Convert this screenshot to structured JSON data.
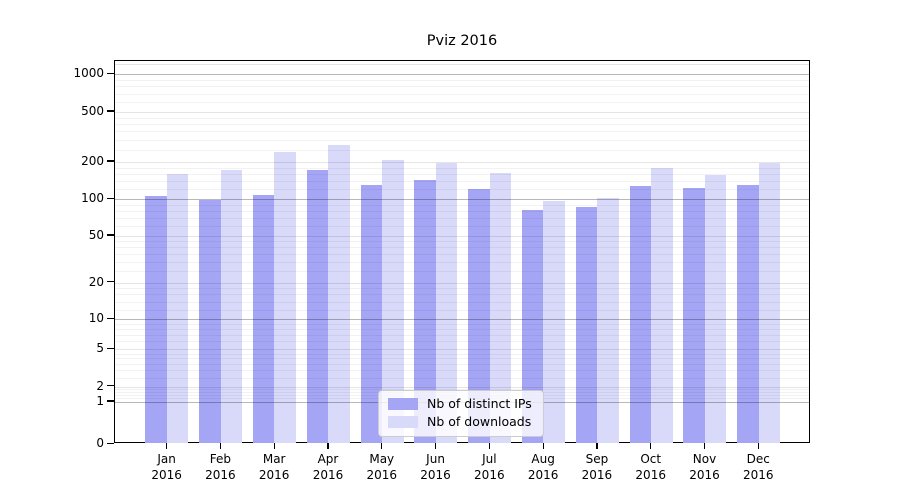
{
  "chart_data": {
    "type": "bar",
    "title": "Pviz 2016",
    "categories": [
      "Jan 2016",
      "Feb 2016",
      "Mar 2016",
      "Apr 2016",
      "May 2016",
      "Jun 2016",
      "Jul 2016",
      "Aug 2016",
      "Sep 2016",
      "Oct 2016",
      "Nov 2016",
      "Dec 2016"
    ],
    "series": [
      {
        "name": "Nb of distinct IPs",
        "color": "#a5a5f6",
        "values": [
          107,
          98,
          109,
          173,
          131,
          142,
          120,
          81,
          86,
          128,
          123,
          131
        ]
      },
      {
        "name": "Nb of downloads",
        "color": "#d9d9f9",
        "values": [
          159,
          173,
          239,
          275,
          207,
          197,
          164,
          97,
          102,
          178,
          158,
          195
        ]
      }
    ],
    "yscale": "symlog",
    "y_ticks": [
      0,
      1,
      2,
      5,
      10,
      20,
      50,
      100,
      200,
      500,
      1000
    ],
    "y_tick_labels": [
      "0",
      "1",
      "2",
      "5",
      "10",
      "20",
      "50",
      "100",
      "200",
      "500",
      "1000"
    ],
    "xlabel": "",
    "ylabel": "",
    "ylim": [
      0,
      1280
    ],
    "grid": "on",
    "legend_position": "lower center",
    "colors": {
      "background": "#ffffff",
      "spine": "#000000",
      "grid_pow10": "#b8b8b8",
      "grid_major": "#e6e6e6",
      "grid_minor": "#f3f3f3",
      "legend_border": "#cccccc"
    }
  }
}
